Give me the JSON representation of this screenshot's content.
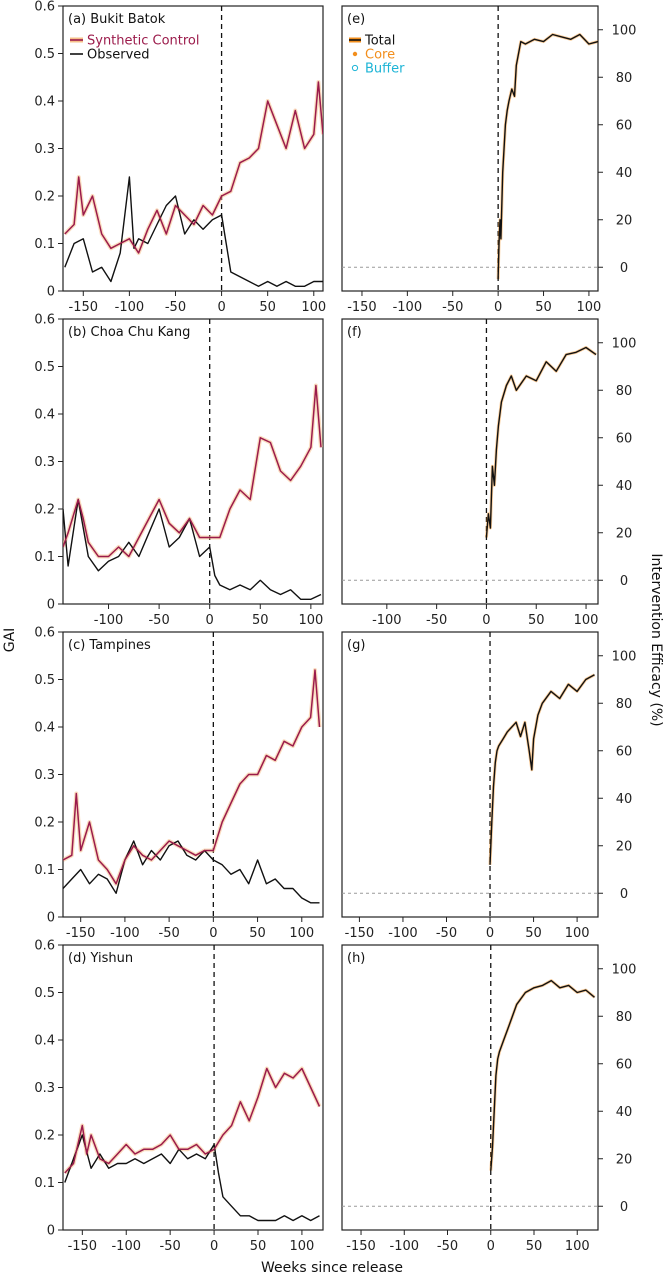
{
  "chart_data": {
    "type": "line",
    "xlabel": "Weeks since release",
    "ylabel_left": "GAI",
    "ylabel_right": "Intervention Efficacy (%)",
    "colors": {
      "synthetic": "#9b1b4b",
      "synthetic_band": "#f6c08a",
      "observed": "#111111",
      "total": "#111111",
      "core": "#f28e1c",
      "buffer": "#1cb4d6",
      "zero_line": "#9a9a9a"
    },
    "legend_left": {
      "synthetic": "Synthetic Control",
      "observed": "Observed"
    },
    "legend_right": {
      "total": "Total",
      "core": "Core",
      "buffer": "Buffer"
    },
    "left_panels": [
      {
        "id": "a",
        "label": "(a) Bukit Batok",
        "xlim": [
          -172,
          110
        ],
        "ylim": [
          0,
          0.6
        ],
        "xticks": [
          "-150",
          "-100",
          "-50",
          "0",
          "50",
          "100"
        ],
        "xtick_values": [
          -150,
          -100,
          -50,
          0,
          50,
          100
        ],
        "yticks": [
          "0",
          "0.1",
          "0.2",
          "0.3",
          "0.4",
          "0.5",
          "0.6"
        ],
        "ytick_values": [
          0,
          0.1,
          0.2,
          0.3,
          0.4,
          0.5,
          0.6
        ],
        "show_xticks": true,
        "synthetic": {
          "x": [
            -170,
            -160,
            -155,
            -150,
            -140,
            -130,
            -120,
            -110,
            -100,
            -90,
            -80,
            -70,
            -60,
            -50,
            -40,
            -30,
            -20,
            -10,
            0,
            10,
            20,
            30,
            40,
            50,
            60,
            70,
            80,
            90,
            100,
            105,
            110
          ],
          "y": [
            0.12,
            0.14,
            0.24,
            0.16,
            0.2,
            0.12,
            0.09,
            0.1,
            0.11,
            0.08,
            0.13,
            0.17,
            0.12,
            0.18,
            0.16,
            0.14,
            0.18,
            0.16,
            0.2,
            0.21,
            0.27,
            0.28,
            0.3,
            0.4,
            0.35,
            0.3,
            0.38,
            0.3,
            0.33,
            0.44,
            0.33
          ]
        },
        "observed": {
          "x": [
            -170,
            -160,
            -150,
            -140,
            -130,
            -120,
            -110,
            -100,
            -95,
            -90,
            -80,
            -70,
            -60,
            -50,
            -40,
            -30,
            -20,
            -10,
            0,
            5,
            10,
            20,
            30,
            40,
            50,
            60,
            70,
            80,
            90,
            100,
            110
          ],
          "y": [
            0.05,
            0.1,
            0.11,
            0.04,
            0.05,
            0.02,
            0.08,
            0.24,
            0.09,
            0.11,
            0.1,
            0.14,
            0.18,
            0.2,
            0.12,
            0.15,
            0.13,
            0.15,
            0.16,
            0.1,
            0.04,
            0.03,
            0.02,
            0.01,
            0.02,
            0.01,
            0.02,
            0.01,
            0.01,
            0.02,
            0.02
          ]
        }
      },
      {
        "id": "b",
        "label": "(b) Choa Chu Kang",
        "xlim": [
          -145,
          112
        ],
        "ylim": [
          0,
          0.6
        ],
        "xticks": [
          "-100",
          "-50",
          "0",
          "50",
          "100"
        ],
        "xtick_values": [
          -100,
          -50,
          0,
          50,
          100
        ],
        "yticks": [
          "0",
          "0.1",
          "0.2",
          "0.3",
          "0.4",
          "0.5",
          "0.6"
        ],
        "ytick_values": [
          0,
          0.1,
          0.2,
          0.3,
          0.4,
          0.5,
          0.6
        ],
        "show_xticks": true,
        "synthetic": {
          "x": [
            -145,
            -140,
            -130,
            -125,
            -120,
            -110,
            -100,
            -90,
            -80,
            -70,
            -60,
            -50,
            -40,
            -30,
            -20,
            -10,
            0,
            10,
            20,
            30,
            40,
            50,
            60,
            70,
            80,
            90,
            100,
            105,
            110
          ],
          "y": [
            0.12,
            0.15,
            0.22,
            0.18,
            0.13,
            0.1,
            0.1,
            0.12,
            0.1,
            0.14,
            0.18,
            0.22,
            0.17,
            0.15,
            0.18,
            0.14,
            0.14,
            0.14,
            0.2,
            0.24,
            0.22,
            0.35,
            0.34,
            0.28,
            0.26,
            0.29,
            0.33,
            0.46,
            0.33
          ]
        },
        "observed": {
          "x": [
            -145,
            -140,
            -130,
            -120,
            -110,
            -100,
            -90,
            -80,
            -70,
            -60,
            -50,
            -40,
            -30,
            -20,
            -10,
            0,
            5,
            10,
            20,
            30,
            40,
            50,
            60,
            70,
            80,
            90,
            100,
            110
          ],
          "y": [
            0.2,
            0.08,
            0.22,
            0.1,
            0.07,
            0.09,
            0.1,
            0.13,
            0.1,
            0.15,
            0.2,
            0.12,
            0.14,
            0.18,
            0.1,
            0.12,
            0.06,
            0.04,
            0.03,
            0.04,
            0.03,
            0.05,
            0.03,
            0.02,
            0.03,
            0.01,
            0.01,
            0.02
          ]
        }
      },
      {
        "id": "c",
        "label": "(c) Tampines",
        "xlim": [
          -170,
          124
        ],
        "ylim": [
          0,
          0.6
        ],
        "xticks": [
          "-150",
          "-100",
          "-50",
          "0",
          "50",
          "100"
        ],
        "xtick_values": [
          -150,
          -100,
          -50,
          0,
          50,
          100
        ],
        "yticks": [
          "0",
          "0.1",
          "0.2",
          "0.3",
          "0.4",
          "0.5",
          "0.6"
        ],
        "ytick_values": [
          0,
          0.1,
          0.2,
          0.3,
          0.4,
          0.5,
          0.6
        ],
        "show_xticks": true,
        "synthetic": {
          "x": [
            -170,
            -160,
            -155,
            -150,
            -140,
            -130,
            -120,
            -110,
            -100,
            -90,
            -80,
            -70,
            -60,
            -50,
            -40,
            -30,
            -20,
            -10,
            0,
            10,
            20,
            30,
            40,
            50,
            60,
            70,
            80,
            90,
            100,
            110,
            115,
            120
          ],
          "y": [
            0.12,
            0.13,
            0.26,
            0.14,
            0.2,
            0.12,
            0.1,
            0.07,
            0.12,
            0.15,
            0.13,
            0.12,
            0.14,
            0.16,
            0.15,
            0.14,
            0.13,
            0.14,
            0.14,
            0.2,
            0.24,
            0.28,
            0.3,
            0.3,
            0.34,
            0.33,
            0.37,
            0.36,
            0.4,
            0.42,
            0.52,
            0.4
          ]
        },
        "observed": {
          "x": [
            -170,
            -160,
            -150,
            -140,
            -130,
            -120,
            -110,
            -100,
            -90,
            -80,
            -70,
            -60,
            -50,
            -40,
            -30,
            -20,
            -10,
            0,
            10,
            20,
            30,
            40,
            50,
            60,
            70,
            80,
            90,
            100,
            110,
            120
          ],
          "y": [
            0.06,
            0.08,
            0.1,
            0.07,
            0.09,
            0.08,
            0.05,
            0.12,
            0.16,
            0.11,
            0.14,
            0.12,
            0.15,
            0.16,
            0.13,
            0.12,
            0.14,
            0.12,
            0.11,
            0.09,
            0.1,
            0.07,
            0.12,
            0.07,
            0.08,
            0.06,
            0.06,
            0.04,
            0.03,
            0.03
          ]
        }
      },
      {
        "id": "d",
        "label": "(d) Yishun",
        "xlim": [
          -172,
          124
        ],
        "ylim": [
          0,
          0.6
        ],
        "xticks": [
          "-150",
          "-100",
          "-50",
          "0",
          "50",
          "100"
        ],
        "xtick_values": [
          -150,
          -100,
          -50,
          0,
          50,
          100
        ],
        "yticks": [
          "0",
          "0.1",
          "0.2",
          "0.3",
          "0.4",
          "0.5",
          "0.6"
        ],
        "ytick_values": [
          0,
          0.1,
          0.2,
          0.3,
          0.4,
          0.5,
          0.6
        ],
        "show_xticks": true,
        "synthetic": {
          "x": [
            -170,
            -160,
            -150,
            -145,
            -140,
            -130,
            -120,
            -110,
            -100,
            -90,
            -80,
            -70,
            -60,
            -50,
            -40,
            -30,
            -20,
            -10,
            0,
            10,
            20,
            30,
            40,
            50,
            60,
            70,
            80,
            90,
            100,
            110,
            120
          ],
          "y": [
            0.12,
            0.14,
            0.22,
            0.16,
            0.2,
            0.15,
            0.14,
            0.16,
            0.18,
            0.16,
            0.17,
            0.17,
            0.18,
            0.2,
            0.17,
            0.17,
            0.18,
            0.16,
            0.17,
            0.2,
            0.22,
            0.27,
            0.23,
            0.28,
            0.34,
            0.3,
            0.33,
            0.32,
            0.34,
            0.3,
            0.26
          ]
        },
        "observed": {
          "x": [
            -170,
            -160,
            -150,
            -140,
            -130,
            -120,
            -110,
            -100,
            -90,
            -80,
            -70,
            -60,
            -50,
            -40,
            -30,
            -20,
            -10,
            0,
            5,
            10,
            20,
            30,
            40,
            50,
            60,
            70,
            80,
            90,
            100,
            110,
            120
          ],
          "y": [
            0.1,
            0.15,
            0.2,
            0.13,
            0.16,
            0.13,
            0.14,
            0.14,
            0.15,
            0.14,
            0.15,
            0.16,
            0.14,
            0.17,
            0.15,
            0.16,
            0.15,
            0.18,
            0.12,
            0.07,
            0.05,
            0.03,
            0.03,
            0.02,
            0.02,
            0.02,
            0.03,
            0.02,
            0.03,
            0.02,
            0.03
          ]
        }
      }
    ],
    "right_panels": [
      {
        "id": "e",
        "label": "(e)",
        "xlim": [
          -172,
          110
        ],
        "ylim": [
          -10,
          110
        ],
        "xticks": [
          "-150",
          "-100",
          "-50",
          "0",
          "50",
          "100"
        ],
        "xtick_values": [
          -150,
          -100,
          -50,
          0,
          50,
          100
        ],
        "yticks": [
          "0",
          "20",
          "40",
          "60",
          "80",
          "100"
        ],
        "ytick_values": [
          0,
          20,
          40,
          60,
          80,
          100
        ],
        "show_xticks": true,
        "total": {
          "x": [
            0,
            1,
            2,
            3,
            5,
            8,
            10,
            12,
            15,
            18,
            20,
            25,
            30,
            40,
            50,
            60,
            70,
            80,
            90,
            100,
            110
          ],
          "y": [
            -5,
            10,
            20,
            12,
            40,
            60,
            66,
            70,
            75,
            72,
            85,
            95,
            94,
            96,
            95,
            98,
            97,
            96,
            98,
            94,
            95
          ]
        }
      },
      {
        "id": "f",
        "label": "(f)",
        "xlim": [
          -145,
          112
        ],
        "ylim": [
          -10,
          110
        ],
        "xticks": [
          "-100",
          "-50",
          "0",
          "50",
          "100"
        ],
        "xtick_values": [
          -100,
          -50,
          0,
          50,
          100
        ],
        "yticks": [
          "0",
          "20",
          "40",
          "60",
          "80",
          "100"
        ],
        "ytick_values": [
          0,
          20,
          40,
          60,
          80,
          100
        ],
        "show_xticks": true,
        "total": {
          "x": [
            0,
            2,
            4,
            6,
            8,
            10,
            12,
            15,
            20,
            25,
            30,
            40,
            50,
            60,
            70,
            80,
            90,
            100,
            110
          ],
          "y": [
            18,
            28,
            22,
            48,
            40,
            55,
            65,
            75,
            82,
            86,
            80,
            86,
            84,
            92,
            88,
            95,
            96,
            98,
            95
          ]
        }
      },
      {
        "id": "g",
        "label": "(g)",
        "xlim": [
          -170,
          124
        ],
        "ylim": [
          -10,
          110
        ],
        "xticks": [
          "-150",
          "-100",
          "-50",
          "0",
          "50",
          "100"
        ],
        "xtick_values": [
          -150,
          -100,
          -50,
          0,
          50,
          100
        ],
        "yticks": [
          "0",
          "20",
          "40",
          "60",
          "80",
          "100"
        ],
        "ytick_values": [
          0,
          20,
          40,
          60,
          80,
          100
        ],
        "show_xticks": true,
        "total": {
          "x": [
            0,
            2,
            4,
            6,
            8,
            10,
            15,
            20,
            25,
            30,
            35,
            40,
            45,
            48,
            50,
            55,
            60,
            70,
            80,
            90,
            100,
            110,
            120
          ],
          "y": [
            12,
            30,
            45,
            55,
            60,
            62,
            65,
            68,
            70,
            72,
            66,
            72,
            60,
            52,
            65,
            75,
            80,
            85,
            82,
            88,
            85,
            90,
            92
          ]
        }
      },
      {
        "id": "h",
        "label": "(h)",
        "xlim": [
          -172,
          124
        ],
        "ylim": [
          -10,
          110
        ],
        "xticks": [
          "-150",
          "-100",
          "-50",
          "0",
          "50",
          "100"
        ],
        "xtick_values": [
          -150,
          -100,
          -50,
          0,
          50,
          100
        ],
        "yticks": [
          "0",
          "20",
          "40",
          "60",
          "80",
          "100"
        ],
        "ytick_values": [
          0,
          20,
          40,
          60,
          80,
          100
        ],
        "show_xticks": true,
        "total": {
          "x": [
            0,
            2,
            4,
            6,
            8,
            10,
            15,
            20,
            25,
            30,
            40,
            50,
            60,
            70,
            80,
            90,
            100,
            110,
            120
          ],
          "y": [
            15,
            25,
            40,
            55,
            62,
            65,
            70,
            75,
            80,
            85,
            90,
            92,
            93,
            95,
            92,
            93,
            90,
            91,
            88
          ]
        }
      }
    ]
  }
}
